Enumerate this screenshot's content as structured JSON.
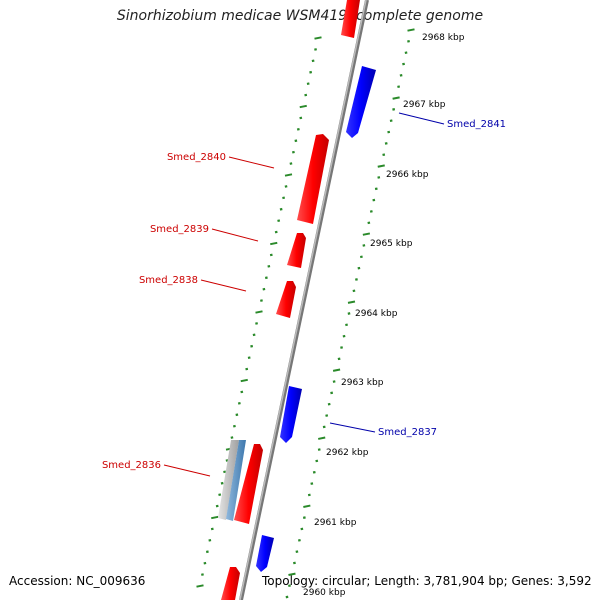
{
  "title": "Sinorhizobium medicae WSM419, complete genome",
  "accession": "Accession: NC_009636",
  "summary": "Topology: circular; Length: 3,781,904 bp; Genes: 3,592",
  "colors": {
    "forward_gene": "#ff0000",
    "reverse_gene": "#0000ff",
    "backbone": "#888888",
    "tick": "#2a8a2a",
    "rna_gray": "#bbbbbb",
    "rna_blue": "#5a8fc0"
  },
  "ticks": [
    {
      "label": "2968 kbp"
    },
    {
      "label": "2967 kbp"
    },
    {
      "label": "2966 kbp"
    },
    {
      "label": "2965 kbp"
    },
    {
      "label": "2964 kbp"
    },
    {
      "label": "2963 kbp"
    },
    {
      "label": "2962 kbp"
    },
    {
      "label": "2961 kbp"
    },
    {
      "label": "2960 kbp"
    }
  ],
  "gene_labels": [
    {
      "name": "Smed_2841",
      "strand": "reverse"
    },
    {
      "name": "Smed_2840",
      "strand": "forward"
    },
    {
      "name": "Smed_2839",
      "strand": "forward"
    },
    {
      "name": "Smed_2838",
      "strand": "forward"
    },
    {
      "name": "Smed_2837",
      "strand": "reverse"
    },
    {
      "name": "Smed_2836",
      "strand": "forward"
    }
  ]
}
